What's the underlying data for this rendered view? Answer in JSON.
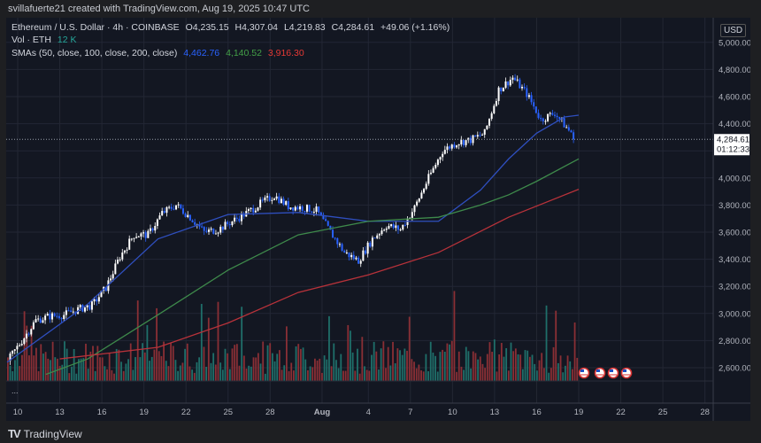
{
  "credit": "svillafuerte21 created with TradingView.com, Aug 19, 2025 10:47 UTC",
  "legend": {
    "symbol": "Ethereum / U.S. Dollar · 4h · COINBASE",
    "open": "O4,235.15",
    "high": "H4,307.04",
    "low": "L4,219.83",
    "close": "C4,284.61",
    "change": "+49.06 (+1.16%)",
    "vol_label": "Vol · ETH",
    "vol_value": "12 K",
    "sma_label": "SMAs (50, close, 100, close, 200, close)",
    "sma50": "4,462.76",
    "sma100": "4,140.52",
    "sma200": "3,916.30"
  },
  "currency": "USD",
  "price_label": "4,284.61",
  "countdown": "01:12:33",
  "footer_brand": "TradingView",
  "more_label": "...",
  "colors": {
    "up": "#ffffff",
    "down": "#2962ff",
    "sma50": "#2f4fbf",
    "sma100": "#3e8a4b",
    "sma200": "#b8323a",
    "vol_up": "#1f6f6a",
    "vol_down": "#8a2f35",
    "bg": "#131722"
  },
  "icons": [
    "us-flag-icon",
    "us-flag-icon",
    "us-flag-icon",
    "us-flag-icon"
  ],
  "chart_data": {
    "type": "candlestick",
    "timeframe": "4h",
    "x_ticks": [
      "10",
      "13",
      "16",
      "19",
      "22",
      "25",
      "28",
      "Aug",
      "4",
      "7",
      "10",
      "13",
      "16",
      "19",
      "22",
      "25",
      "28"
    ],
    "y_ticks": [
      2600,
      2800,
      3000,
      3200,
      3400,
      3600,
      3800,
      4000,
      4200,
      4400,
      4600,
      4800,
      5000
    ],
    "ylim": [
      2520,
      5050
    ],
    "dates": [
      "Jul 10",
      "Jul 11",
      "Jul 12",
      "Jul 13",
      "Jul 14",
      "Jul 15",
      "Jul 16",
      "Jul 17",
      "Jul 18",
      "Jul 19",
      "Jul 20",
      "Jul 21",
      "Jul 22",
      "Jul 23",
      "Jul 24",
      "Jul 25",
      "Jul 26",
      "Jul 27",
      "Jul 28",
      "Jul 29",
      "Jul 30",
      "Jul 31",
      "Aug 1",
      "Aug 2",
      "Aug 3",
      "Aug 4",
      "Aug 5",
      "Aug 6",
      "Aug 7",
      "Aug 8",
      "Aug 9",
      "Aug 10",
      "Aug 11",
      "Aug 12",
      "Aug 13",
      "Aug 14",
      "Aug 15",
      "Aug 16",
      "Aug 17",
      "Aug 18",
      "Aug 19"
    ],
    "daily_close": [
      2800,
      2950,
      2980,
      2990,
      3030,
      3060,
      3190,
      3420,
      3580,
      3580,
      3740,
      3800,
      3710,
      3600,
      3620,
      3680,
      3740,
      3810,
      3870,
      3790,
      3780,
      3760,
      3600,
      3450,
      3390,
      3550,
      3650,
      3620,
      3780,
      4000,
      4200,
      4260,
      4280,
      4330,
      4650,
      4740,
      4620,
      4430,
      4480,
      4350,
      4285
    ],
    "start_price": 2650,
    "sma": [
      {
        "name": "SMA 50",
        "points": [
          [
            "Jul 10",
            2640
          ],
          [
            "Jul 15",
            3070
          ],
          [
            "Jul 20",
            3550
          ],
          [
            "Jul 25",
            3730
          ],
          [
            "Jul 30",
            3745
          ],
          [
            "Aug 4",
            3680
          ],
          [
            "Aug 9",
            3680
          ],
          [
            "Aug 12",
            3910
          ],
          [
            "Aug 14",
            4140
          ],
          [
            "Aug 16",
            4330
          ],
          [
            "Aug 18",
            4450
          ],
          [
            "Aug 19",
            4462.76
          ]
        ]
      },
      {
        "name": "SMA 100",
        "points": [
          [
            "Jul 12",
            2550
          ],
          [
            "Jul 15",
            2665
          ],
          [
            "Jul 20",
            2990
          ],
          [
            "Jul 25",
            3320
          ],
          [
            "Jul 30",
            3580
          ],
          [
            "Aug 4",
            3680
          ],
          [
            "Aug 9",
            3710
          ],
          [
            "Aug 12",
            3800
          ],
          [
            "Aug 14",
            3875
          ],
          [
            "Aug 16",
            3975
          ],
          [
            "Aug 19",
            4140.52
          ]
        ]
      },
      {
        "name": "SMA 200",
        "points": [
          [
            "Jul 13",
            2665
          ],
          [
            "Jul 20",
            2750
          ],
          [
            "Jul 25",
            2930
          ],
          [
            "Jul 30",
            3155
          ],
          [
            "Aug 4",
            3285
          ],
          [
            "Aug 9",
            3450
          ],
          [
            "Aug 14",
            3710
          ],
          [
            "Aug 19",
            3916.3
          ]
        ]
      }
    ],
    "last_price": 4284.61,
    "grid": true
  }
}
